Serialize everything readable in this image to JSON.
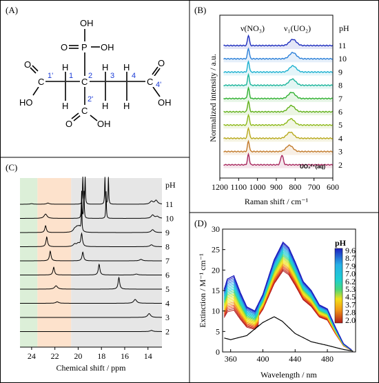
{
  "panels": {
    "A": {
      "label": "(A)",
      "atoms": {
        "oh_top": "OH",
        "o_left": "O",
        "p": "P",
        "oh_right": "OH",
        "o_c1": "O",
        "c1": "C",
        "ho_c1": "HO",
        "h_c2t": "H",
        "h_c2b": "H",
        "c2": "C",
        "c3": "C",
        "h_c3t": "H",
        "h_c3b": "H",
        "c4": "C",
        "h_c4t": "H",
        "h_c4b": "H",
        "c5": "C",
        "o_c5": "O",
        "oh_c5": "OH",
        "c6": "C",
        "o_c6": "O",
        "oh_c6": "OH"
      },
      "numbers": {
        "n1p": "1'",
        "n1": "1",
        "n2": "2",
        "n3": "3",
        "n4": "4",
        "n4p": "4'",
        "n2p": "2'"
      }
    },
    "B": {
      "label": "(B)",
      "peak_label_1": "ν(NO₃)",
      "peak_label_2": "ν₁(UO₂)",
      "aq_label": "UO₂²⁺(aq)",
      "ph_header": "pH"
    },
    "C": {
      "label": "(C)",
      "ph_header": "pH"
    },
    "D": {
      "label": "(D)",
      "legend_title": "pH"
    }
  },
  "chart_data": [
    {
      "panel": "B",
      "type": "line",
      "xlabel": "Raman shift / cm⁻¹",
      "ylabel": "Normalized intensity / a.u.",
      "xlim": [
        1200,
        600
      ],
      "xticks": [
        "1200",
        "1100",
        "1000",
        "900",
        "800",
        "700",
        "600"
      ],
      "series_labels": [
        "11",
        "10",
        "9",
        "8",
        "7",
        "6",
        "5",
        "4",
        "3",
        "2"
      ],
      "series_colors": [
        "#1f2fbf",
        "#2a7fd8",
        "#1ab0d0",
        "#18b49a",
        "#2fb030",
        "#5fb018",
        "#8cb816",
        "#b7a81a",
        "#c27a2a",
        "#a8285e"
      ],
      "nitrate_peak": 1048,
      "uo2_peaks": [
        812,
        812,
        812,
        815,
        818,
        820,
        822,
        826,
        830,
        870
      ]
    },
    {
      "panel": "C",
      "type": "line",
      "xlabel": "Chemical shift / ppm",
      "xlim": [
        25,
        12.8
      ],
      "xticks": [
        "24",
        "22",
        "20",
        "18",
        "16",
        "14"
      ],
      "series_labels": [
        "11",
        "10",
        "9",
        "8",
        "7",
        "6",
        "5",
        "4",
        "3",
        "2"
      ],
      "shaded_regions": [
        {
          "from": 25,
          "to": 23.5,
          "color": "#dcefd8"
        },
        {
          "from": 23.5,
          "to": 20.6,
          "color": "#fde2cc"
        },
        {
          "from": 20.6,
          "to": 12.8,
          "color": "#e6e6e6"
        }
      ],
      "peaks": [
        [
          [
            24.0,
            0.06
          ],
          [
            22.6,
            0.12
          ],
          [
            19.6,
            2.8
          ],
          [
            19.4,
            2.8
          ],
          [
            17.7,
            2.8
          ],
          [
            17.4,
            2.8
          ],
          [
            13.7,
            0.3
          ],
          [
            13.3,
            0.4
          ]
        ],
        [
          [
            22.8,
            0.45
          ],
          [
            19.7,
            2.8
          ],
          [
            19.5,
            2.8
          ],
          [
            17.6,
            2.8
          ],
          [
            13.6,
            0.35
          ],
          [
            13.2,
            0.2
          ]
        ],
        [
          [
            22.8,
            0.7
          ],
          [
            20.3,
            0.3
          ],
          [
            20.1,
            0.4
          ],
          [
            19.9,
            0.5
          ],
          [
            19.7,
            2.8
          ],
          [
            13.6,
            0.3
          ]
        ],
        [
          [
            22.7,
            1.0
          ],
          [
            20.3,
            0.25
          ],
          [
            20.0,
            0.3
          ],
          [
            19.7,
            1.3
          ],
          [
            13.7,
            0.2
          ]
        ],
        [
          [
            22.4,
            1.0
          ],
          [
            19.6,
            0.9
          ],
          [
            14.6,
            0.15
          ]
        ],
        [
          [
            22.1,
            0.8
          ],
          [
            18.2,
            1.1
          ],
          [
            15.0,
            0.1
          ]
        ],
        [
          [
            21.9,
            0.35
          ],
          [
            16.5,
            1.2
          ]
        ],
        [
          [
            21.8,
            0.15
          ],
          [
            15.1,
            0.4
          ]
        ],
        [
          [
            13.9,
            0.4
          ]
        ],
        [
          [
            13.7,
            0.12
          ]
        ]
      ]
    },
    {
      "panel": "D",
      "type": "line",
      "xlabel": "Wavelength / nm",
      "ylabel": "Extinction / M⁻¹ cm⁻¹",
      "xlim": [
        350,
        515
      ],
      "ylim": [
        0,
        30
      ],
      "xticks": [
        "360",
        "400",
        "440",
        "480"
      ],
      "yticks": [
        "0",
        "5",
        "10",
        "15",
        "20",
        "25",
        "30"
      ],
      "legend_entries": [
        "9.6",
        "8.7",
        "7.9",
        "7.0",
        "6.2",
        "5.3",
        "4.5",
        "3.7",
        "2.8",
        "2.0"
      ],
      "legend_colors": [
        "#1f1fbf",
        "#2a6fe0",
        "#27b0e6",
        "#1ecfd0",
        "#49d67a",
        "#b6e22a",
        "#f2e01a",
        "#f29a16",
        "#e6451a",
        "#b31a1a"
      ],
      "low_ph_curve": {
        "x": [
          350,
          360,
          380,
          400,
          414,
          424,
          440,
          460,
          480,
          500,
          512
        ],
        "y": [
          3.5,
          3.0,
          4.0,
          7.2,
          8.6,
          7.5,
          4.5,
          2.5,
          1.6,
          0.6,
          0.2
        ]
      },
      "high_ph_curve": {
        "x": [
          350,
          356,
          364,
          372,
          380,
          390,
          400,
          414,
          425,
          432,
          440,
          450,
          460,
          470,
          480,
          490,
          500,
          510
        ],
        "y": [
          14,
          17.8,
          18.6,
          14.5,
          11,
          10,
          14,
          22.5,
          26.8,
          25.5,
          22,
          17.2,
          15,
          11.5,
          10.5,
          6,
          2,
          0.5
        ]
      }
    }
  ]
}
